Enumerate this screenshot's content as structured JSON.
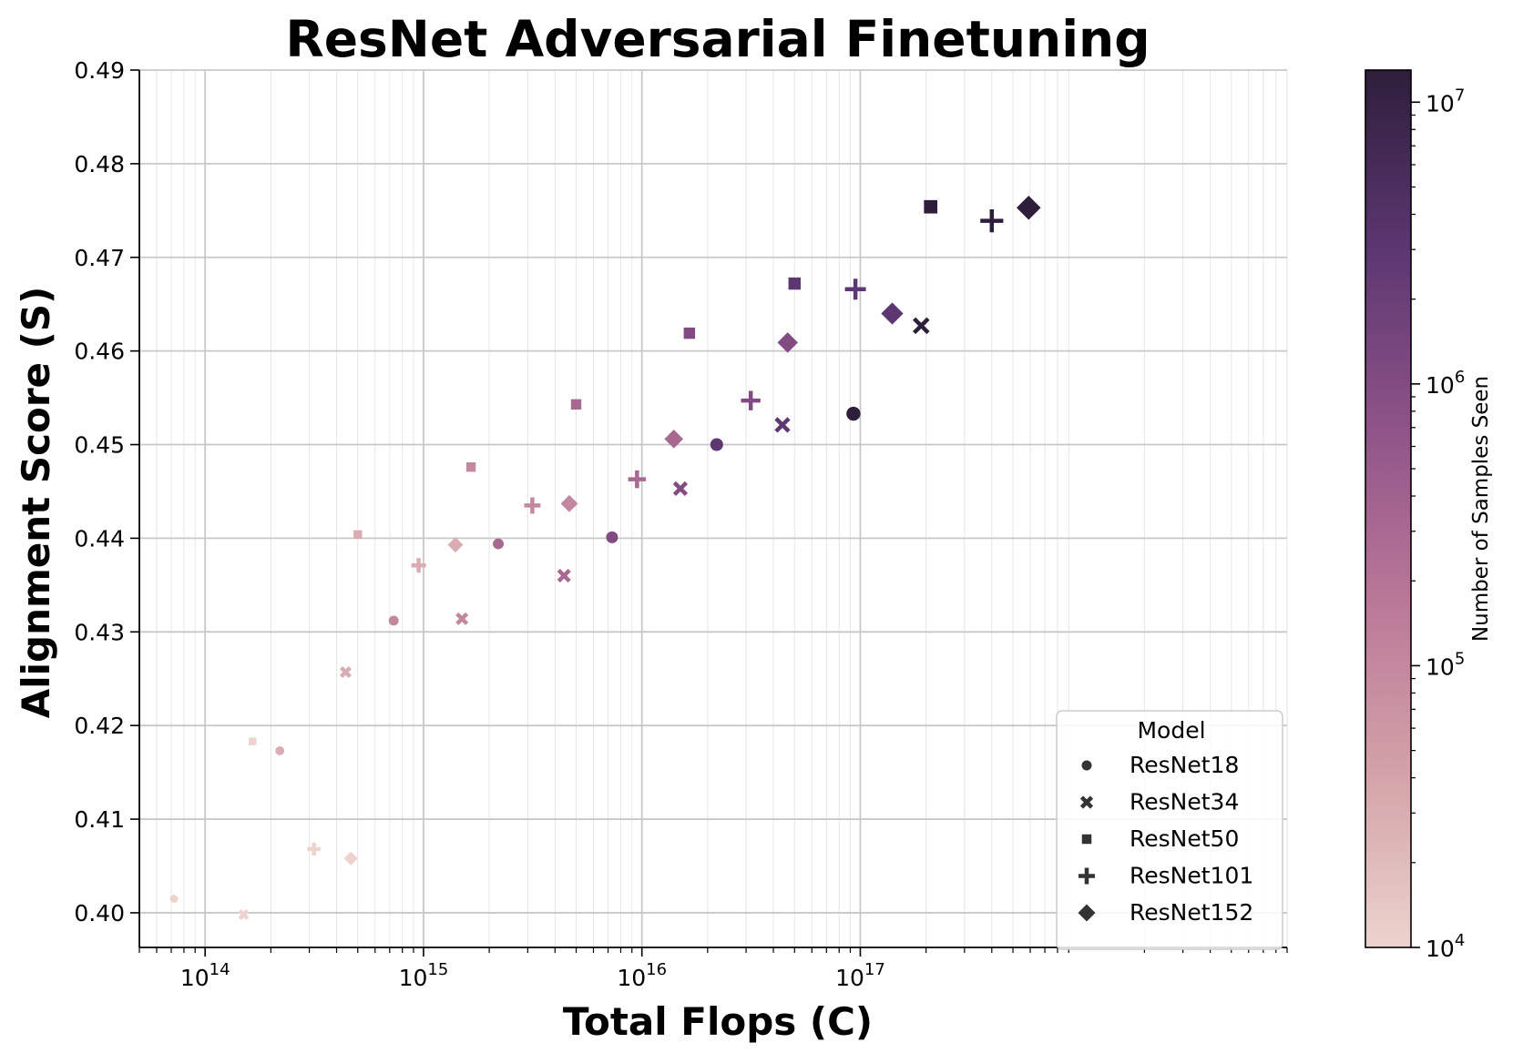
{
  "chart_data": {
    "type": "scatter",
    "title": "ResNet Adversarial Finetuning",
    "xlabel": "Total Flops (C)",
    "ylabel": "Alignment Score (S)",
    "xscale": "log",
    "xlim": [
      50000000000000,
      9000000000000000000
    ],
    "ylim": [
      0.3963,
      0.49
    ],
    "x_ticks": [
      {
        "value": 100000000000000,
        "base": "10",
        "exp": "14"
      },
      {
        "value": 1000000000000000,
        "base": "10",
        "exp": "15"
      },
      {
        "value": 10000000000000000,
        "base": "10",
        "exp": "16"
      },
      {
        "value": 100000000000000000,
        "base": "10",
        "exp": "17"
      }
    ],
    "y_ticks": [
      "0.40",
      "0.41",
      "0.42",
      "0.43",
      "0.44",
      "0.45",
      "0.46",
      "0.47",
      "0.48",
      "0.49"
    ],
    "grid": true,
    "colorbar": {
      "label": "Number of Samples Seen",
      "scale": "log",
      "range": [
        10000,
        13000000
      ],
      "ticks": [
        {
          "value": 10000,
          "base": "10",
          "exp": "4"
        },
        {
          "value": 100000,
          "base": "10",
          "exp": "5"
        },
        {
          "value": 1000000,
          "base": "10",
          "exp": "6"
        },
        {
          "value": 10000000,
          "base": "10",
          "exp": "7"
        }
      ],
      "colormap": [
        "#ecd3ce",
        "#d3a2a8",
        "#b97697",
        "#8c5287",
        "#5b3670",
        "#2e1e3b"
      ]
    },
    "legend": {
      "title": "Model",
      "placement": "lower right",
      "entries": [
        {
          "label": "ResNet18",
          "marker": "circle"
        },
        {
          "label": "ResNet34",
          "marker": "x"
        },
        {
          "label": "ResNet50",
          "marker": "square"
        },
        {
          "label": "ResNet101",
          "marker": "plus"
        },
        {
          "label": "ResNet152",
          "marker": "diamond"
        }
      ]
    },
    "series": [
      {
        "name": "ResNet18",
        "marker": "circle",
        "points": [
          {
            "x": 72000000000000,
            "y": 0.4015,
            "samples": 10000
          },
          {
            "x": 220000000000000,
            "y": 0.4173,
            "samples": 30000
          },
          {
            "x": 730000000000000,
            "y": 0.4312,
            "samples": 100000
          },
          {
            "x": 2200000000000000,
            "y": 0.4394,
            "samples": 300000
          },
          {
            "x": 7300000000000000,
            "y": 0.4401,
            "samples": 1000000
          },
          {
            "x": 22000000000000000,
            "y": 0.45,
            "samples": 3000000
          },
          {
            "x": 93000000000000000,
            "y": 0.4533,
            "samples": 12800000
          }
        ]
      },
      {
        "name": "ResNet34",
        "marker": "x",
        "points": [
          {
            "x": 150000000000000,
            "y": 0.3998,
            "samples": 10000
          },
          {
            "x": 440000000000000,
            "y": 0.4257,
            "samples": 30000
          },
          {
            "x": 1500000000000000,
            "y": 0.4314,
            "samples": 100000
          },
          {
            "x": 4400000000000000,
            "y": 0.436,
            "samples": 300000
          },
          {
            "x": 15000000000000000,
            "y": 0.4453,
            "samples": 1000000
          },
          {
            "x": 44000000000000000,
            "y": 0.4521,
            "samples": 3000000
          },
          {
            "x": 190000000000000000,
            "y": 0.4627,
            "samples": 12800000
          }
        ]
      },
      {
        "name": "ResNet50",
        "marker": "square",
        "points": [
          {
            "x": 165000000000000,
            "y": 0.4183,
            "samples": 10000
          },
          {
            "x": 500000000000000,
            "y": 0.4404,
            "samples": 30000
          },
          {
            "x": 1650000000000000,
            "y": 0.4476,
            "samples": 100000
          },
          {
            "x": 5000000000000000,
            "y": 0.4543,
            "samples": 300000
          },
          {
            "x": 16500000000000000,
            "y": 0.4619,
            "samples": 1000000
          },
          {
            "x": 50000000000000000,
            "y": 0.4672,
            "samples": 3000000
          },
          {
            "x": 210000000000000000,
            "y": 0.4754,
            "samples": 12800000
          }
        ]
      },
      {
        "name": "ResNet101",
        "marker": "plus",
        "points": [
          {
            "x": 315000000000000,
            "y": 0.4068,
            "samples": 10000
          },
          {
            "x": 950000000000000,
            "y": 0.4371,
            "samples": 30000
          },
          {
            "x": 3150000000000000,
            "y": 0.4435,
            "samples": 100000
          },
          {
            "x": 9500000000000000,
            "y": 0.4463,
            "samples": 300000
          },
          {
            "x": 31500000000000000,
            "y": 0.4547,
            "samples": 1000000
          },
          {
            "x": 95000000000000000,
            "y": 0.4666,
            "samples": 3000000
          },
          {
            "x": 400000000000000000,
            "y": 0.4739,
            "samples": 12800000
          }
        ]
      },
      {
        "name": "ResNet152",
        "marker": "diamond",
        "points": [
          {
            "x": 465000000000000,
            "y": 0.4058,
            "samples": 10000
          },
          {
            "x": 1400000000000000,
            "y": 0.4393,
            "samples": 30000
          },
          {
            "x": 4650000000000000,
            "y": 0.4437,
            "samples": 100000
          },
          {
            "x": 14000000000000000,
            "y": 0.4506,
            "samples": 300000
          },
          {
            "x": 46500000000000000,
            "y": 0.4609,
            "samples": 1000000
          },
          {
            "x": 140000000000000000,
            "y": 0.464,
            "samples": 3000000
          },
          {
            "x": 590000000000000000,
            "y": 0.4753,
            "samples": 12800000
          }
        ]
      }
    ]
  }
}
